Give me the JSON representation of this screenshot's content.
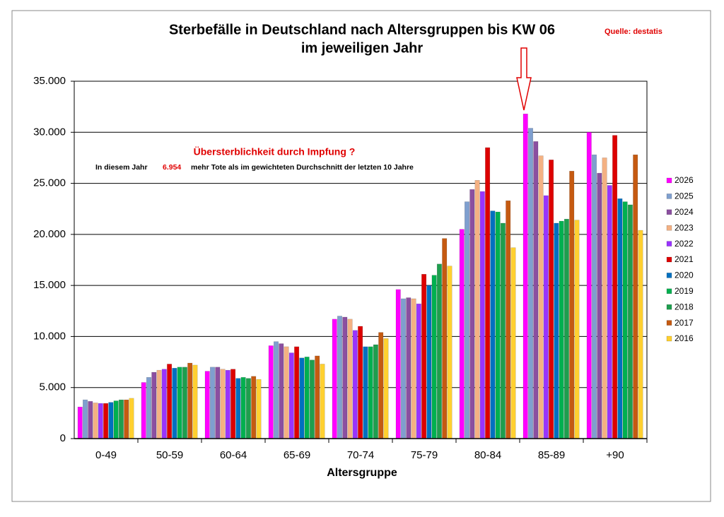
{
  "chart_data": {
    "type": "bar",
    "title": "Sterbefälle in Deutschland nach Altersgruppen bis KW 06",
    "subtitle": "im jeweiligen Jahr",
    "source": "Quelle: destatis",
    "annotation": {
      "headline": "Übersterblichkeit durch Impfung ?",
      "prefix": "In diesem Jahr",
      "number": "6.954",
      "suffix": "mehr Tote als im gewichteten Durchschnitt der letzten 10 Jahre"
    },
    "x_label": "Altersgruppe",
    "categories": [
      "0-49",
      "50-59",
      "60-64",
      "65-69",
      "70-74",
      "75-79",
      "80-84",
      "85-89",
      "+90"
    ],
    "series": [
      {
        "name": "2026",
        "color": "#ff00ff",
        "values": [
          3100,
          5500,
          6600,
          9100,
          11700,
          14600,
          20500,
          31800,
          30000
        ]
      },
      {
        "name": "2025",
        "color": "#7f9fcf",
        "values": [
          3800,
          6000,
          7000,
          9500,
          12000,
          13700,
          23200,
          30400,
          27800
        ]
      },
      {
        "name": "2024",
        "color": "#8b4fa0",
        "values": [
          3650,
          6500,
          7000,
          9300,
          11900,
          13800,
          24400,
          29100,
          26000
        ]
      },
      {
        "name": "2023",
        "color": "#f4b183",
        "values": [
          3500,
          6700,
          6800,
          9000,
          11700,
          13700,
          25300,
          27700,
          27500
        ]
      },
      {
        "name": "2022",
        "color": "#9933ff",
        "values": [
          3450,
          6800,
          6700,
          8400,
          10600,
          13200,
          24200,
          23800,
          24800
        ]
      },
      {
        "name": "2021",
        "color": "#dd0000",
        "values": [
          3450,
          7300,
          6800,
          9000,
          11000,
          16100,
          28500,
          27300,
          29700
        ]
      },
      {
        "name": "2020",
        "color": "#0070c0",
        "values": [
          3550,
          6900,
          5900,
          7900,
          9000,
          15000,
          22300,
          21100,
          23500
        ]
      },
      {
        "name": "2019",
        "color": "#00b050",
        "values": [
          3700,
          7000,
          6000,
          8000,
          9000,
          16000,
          22200,
          21300,
          23200
        ]
      },
      {
        "name": "2018",
        "color": "#1e9e4e",
        "values": [
          3800,
          7000,
          5900,
          7700,
          9200,
          17100,
          21100,
          21500,
          22900
        ]
      },
      {
        "name": "2017",
        "color": "#c55a11",
        "values": [
          3800,
          7400,
          6100,
          8100,
          10400,
          19600,
          23300,
          26200,
          27800
        ]
      },
      {
        "name": "2016",
        "color": "#ffd030",
        "values": [
          3950,
          7200,
          5800,
          7300,
          9800,
          16900,
          18700,
          21400,
          20400
        ]
      }
    ],
    "ylim": [
      0,
      35000
    ],
    "yticks": [
      0,
      {
        "value": 5000,
        "label": "5.000"
      },
      {
        "value": 10000,
        "label": "10.000"
      },
      {
        "value": 15000,
        "label": "15.000"
      },
      {
        "value": 20000,
        "label": "20.000"
      },
      {
        "value": 25000,
        "label": "25.000"
      },
      {
        "value": 30000,
        "label": "30.000"
      },
      {
        "value": 35000,
        "label": "35.000"
      }
    ],
    "grid": true,
    "legend": "right"
  }
}
